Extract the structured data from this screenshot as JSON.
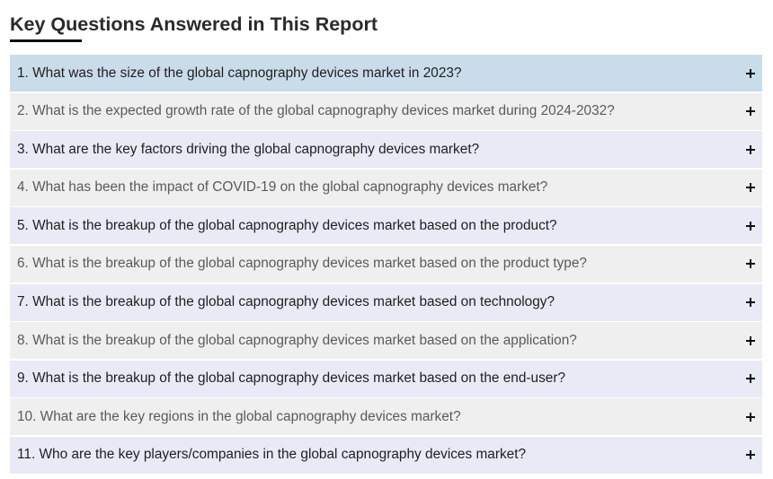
{
  "section": {
    "title": "Key Questions Answered in This Report"
  },
  "faq": {
    "items": [
      {
        "question": "1. What was the size of the global capnography devices market in 2023?",
        "expand_icon": "plus-icon"
      },
      {
        "question": "2. What is the expected growth rate of the global capnography devices market during 2024-2032?",
        "expand_icon": "plus-icon"
      },
      {
        "question": "3. What are the key factors driving the global capnography devices market?",
        "expand_icon": "plus-icon"
      },
      {
        "question": "4. What has been the impact of COVID-19 on the global capnography devices market?",
        "expand_icon": "plus-icon"
      },
      {
        "question": "5. What is the breakup of the global capnography devices market based on the product?",
        "expand_icon": "plus-icon"
      },
      {
        "question": "6. What is the breakup of the global capnography devices market based on the product type?",
        "expand_icon": "plus-icon"
      },
      {
        "question": "7. What is the breakup of the global capnography devices market based on technology?",
        "expand_icon": "plus-icon"
      },
      {
        "question": "8. What is the breakup of the global capnography devices market based on the application?",
        "expand_icon": "plus-icon"
      },
      {
        "question": "9. What is the breakup of the global capnography devices market based on the end-user?",
        "expand_icon": "plus-icon"
      },
      {
        "question": "10. What are the key regions in the global capnography devices market?",
        "expand_icon": "plus-icon"
      },
      {
        "question": "11. Who are the key players/companies in the global capnography devices market?",
        "expand_icon": "plus-icon"
      }
    ]
  },
  "colors": {
    "active_row": "#c9dcea",
    "odd_row": "#e8eaf6",
    "even_row": "#efefef",
    "title_underline": "#111111"
  }
}
